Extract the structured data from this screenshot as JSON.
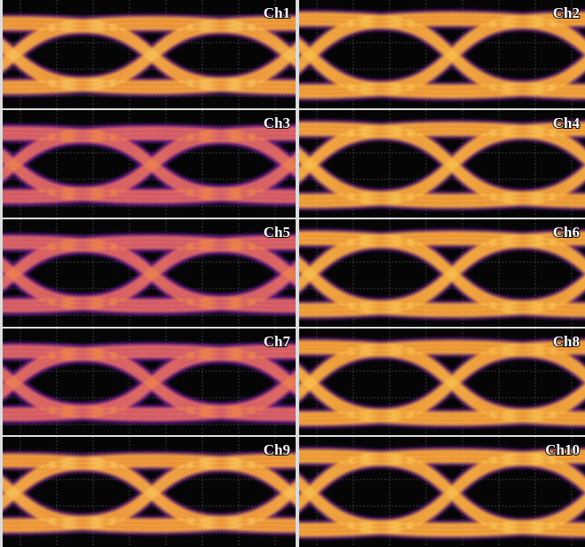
{
  "panels": [
    {
      "label": "Ch1"
    },
    {
      "label": "Ch2"
    },
    {
      "label": "Ch3"
    },
    {
      "label": "Ch4"
    },
    {
      "label": "Ch5"
    },
    {
      "label": "Ch6"
    },
    {
      "label": "Ch7"
    },
    {
      "label": "Ch8"
    },
    {
      "label": "Ch9"
    },
    {
      "label": "Ch10"
    }
  ]
}
